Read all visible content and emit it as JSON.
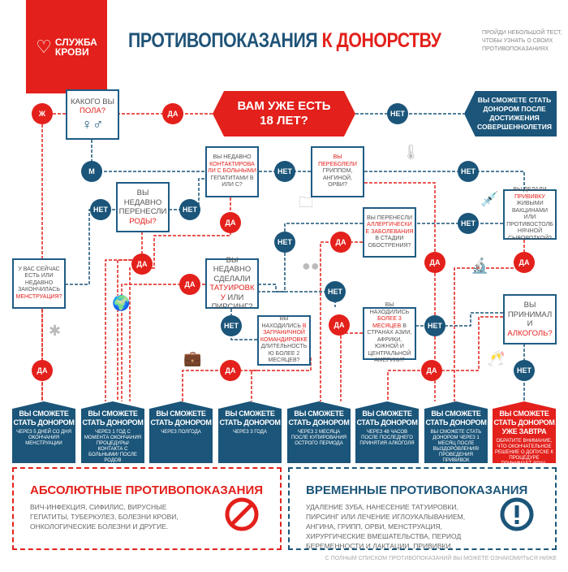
{
  "logo": {
    "text1": "СЛУЖБА",
    "text2": "КРОВИ"
  },
  "header": {
    "title_blue": "ПРОТИВОПОКАЗАНИЯ",
    "title_red": "К ДОНОРСТВУ",
    "subtitle": "ПРОЙДИ НЕБОЛЬШОЙ ТЕСТ, ЧТОБЫ УЗНАТЬ О СВОИХ ПРОТИВОПОКАЗАНИЯХ"
  },
  "start": {
    "line1": "ВАМ УЖЕ ЕСТЬ",
    "line2": "18 ЛЕТ?"
  },
  "underage": "ВЫ СМОЖЕТЕ СТАТЬ ДОНОРОМ ПОСЛЕ ДОСТИЖЕНИЯ СОВЕРШЕННОЛЕТИЯ",
  "labels": {
    "yes": "ДА",
    "no": "НЕТ",
    "female": "Ж",
    "male": "М"
  },
  "questions": {
    "gender": {
      "pre": "КАКОГО ВЫ ",
      "hl": "ПОЛА?",
      "post": "",
      "symbols": "♀♂"
    },
    "contact": {
      "pre": "ВЫ НЕДАВНО ",
      "hl": "КОНТАКТИРОВАЛИ С БОЛЬНЫМИ",
      "post": " ГЕПАТИТАМИ В ИЛИ С?"
    },
    "flu": {
      "pre": "",
      "hl": "ВЫ ПЕРЕБОЛЕЛИ",
      "post": " ГРИППОМ, АНГИНОЙ, ОРВИ?"
    },
    "vaccine": {
      "pre": "ВЫ ДЕЛАЛИ ",
      "hl": "ПРИВИВКУ",
      "post": " ЖИВЫМИ ВАКЦИНАМИ ИЛИ ПРОТИВОСТОЛБНЯЧНОЙ СЫВОРОТКОЙ?"
    },
    "birth": {
      "pre": "ВЫ НЕДАВНО ПЕРЕНЕСЛИ ",
      "hl": "РОДЫ?",
      "post": ""
    },
    "allergy": {
      "pre": "ВЫ ПЕРЕНЕСЛИ ",
      "hl": "АЛЛЕРГИЧЕСКИЕ ЗАБОЛЕВАНИЯ",
      "post": " В СТАДИИ ОБОСТРЕНИЯ?"
    },
    "menstruation": {
      "pre": "У ВАС СЕЙЧАС ЕСТЬ ИЛИ НЕДАВНО ЗАКОНЧИЛАСЬ ",
      "hl": "МЕНСТРУАЦИЯ?",
      "post": ""
    },
    "tattoo": {
      "pre": "ВЫ НЕДАВНО СДЕЛАЛИ ",
      "hl": "ТАТУИРОВКУ",
      "post": " ИЛИ ПИРСИНГ?"
    },
    "abroad": {
      "pre": "ВЫ НАХОДИЛИСЬ ",
      "hl": "В ЗАГРАНИЧНОЙ КОМАНДИРОВКЕ",
      "post": " ДЛИТЕЛЬНОСТЬЮ БОЛЕЕ 2 МЕСЯЦЕВ?"
    },
    "travel": {
      "pre": "ВЫ НАХОДИЛИСЬ ",
      "hl": "БОЛЕЕ 3 МЕСЯЦЕВ",
      "post": " В СТРАНАХ АЗИИ, АФРИКИ, ЮЖНОЙ И ЦЕНТРАЛЬНОЙ АМЕРИКИ?"
    },
    "alcohol": {
      "pre": "ВЫ ПРИНИМАЛИ ",
      "hl": "АЛКОГОЛЬ?",
      "post": ""
    }
  },
  "results": [
    {
      "title": "ВЫ СМОЖЕТЕ СТАТЬ ДОНОРОМ",
      "detail": "ЧЕРЕЗ 5 ДНЕЙ СО ДНЯ ОКОНЧАНИЯ МЕНСТРУАЦИИ"
    },
    {
      "title": "ВЫ СМОЖЕТЕ СТАТЬ ДОНОРОМ",
      "detail": "ЧЕРЕЗ 1 ГОД С МОМЕНТА ОКОНЧАНИЯ ПРОЦЕДУРЫ/ КОНТАКТА С БОЛЬНЫМИ/ ПОСЛЕ РОДОВ"
    },
    {
      "title": "ВЫ СМОЖЕТЕ СТАТЬ ДОНОРОМ",
      "detail": "ЧЕРЕЗ ПОЛГОДА"
    },
    {
      "title": "ВЫ СМОЖЕТЕ СТАТЬ ДОНОРОМ",
      "detail": "ЧЕРЕЗ 3 ГОДА"
    },
    {
      "title": "ВЫ СМОЖЕТЕ СТАТЬ ДОНОРОМ",
      "detail": "ЧЕРЕЗ 2 МЕСЯЦА ПОСЛЕ КУПИРОВАНИЯ ОСТРОГО ПЕРИОДА"
    },
    {
      "title": "ВЫ СМОЖЕТЕ СТАТЬ ДОНОРОМ",
      "detail": "ЧЕРЕЗ 48 ЧАСОВ ПОСЛЕ ПОСЛЕДНЕГО ПРИНЯТИЯ АЛКОГОЛЯ"
    },
    {
      "title": "ВЫ СМОЖЕТЕ СТАТЬ ДОНОРОМ",
      "detail": "ВЫ СМОЖЕТЕ СТАТЬ ДОНОРОМ ЧЕРЕЗ 1 МЕСЯЦ ПОСЛЕ ВЫЗДОРОВЛЕНИЯ/ ПРОВЕДЕНИЯ ПРИВИВОК"
    },
    {
      "title": "ВЫ СМОЖЕТЕ СТАТЬ ДОНОРОМ УЖЕ ЗАВТРА",
      "detail": "ОБРАТИТЕ ВНИМАНИЕ, ЧТО ОКОНЧАТЕЛЬНОЕ РЕШЕНИЕ О ДОПУСКЕ К ПРОЦЕДУРЕ ПРИНИМАЕТ ВРАЧ-ТРАНСФУЗИОЛОГ"
    }
  ],
  "absolute": {
    "title": "АБСОЛЮТНЫЕ ПРОТИВОПОКАЗАНИЯ",
    "text": "ВИЧ-ИНФЕКЦИЯ, СИФИЛИС, ВИРУСНЫЕ ГЕПАТИТЫ, ТУБЕРКУЛЕЗ, БОЛЕЗНИ КРОВИ, ОНКОЛОГИЧЕСКИЕ БОЛЕЗНИ И ДРУГИЕ.",
    "icon": "no-entry-icon"
  },
  "temporary": {
    "title": "ВРЕМЕННЫЕ ПРОТИВОПОКАЗАНИЯ",
    "text": "УДАЛЕНИЕ ЗУБА, НАНЕСЕНИЕ ТАТУИРОВКИ, ПИРСИНГ ИЛИ ЛЕЧЕНИЕ ИГЛОУКАЛЫВАНИЕМ, АНГИНА, ГРИПП, ОРВИ, МЕНСТРУАЦИЯ, ХИРУРГИЧЕСКИЕ ВМЕШАТЕЛЬСТВА, ПЕРИОД БЕРЕМЕННОСТИ И ЛАКТАЦИИ, ПРИВИВКИ.",
    "icon": "exclamation-icon"
  },
  "footer": "С ПОЛНЫМ СПИСКОМ ПРОТИВОПОКАЗАНИЙ ВЫ МОЖЕТЕ ОЗНАКОМИТЬСЯ НИЖЕ",
  "colors": {
    "red": "#e3201b",
    "blue": "#1b5579"
  }
}
